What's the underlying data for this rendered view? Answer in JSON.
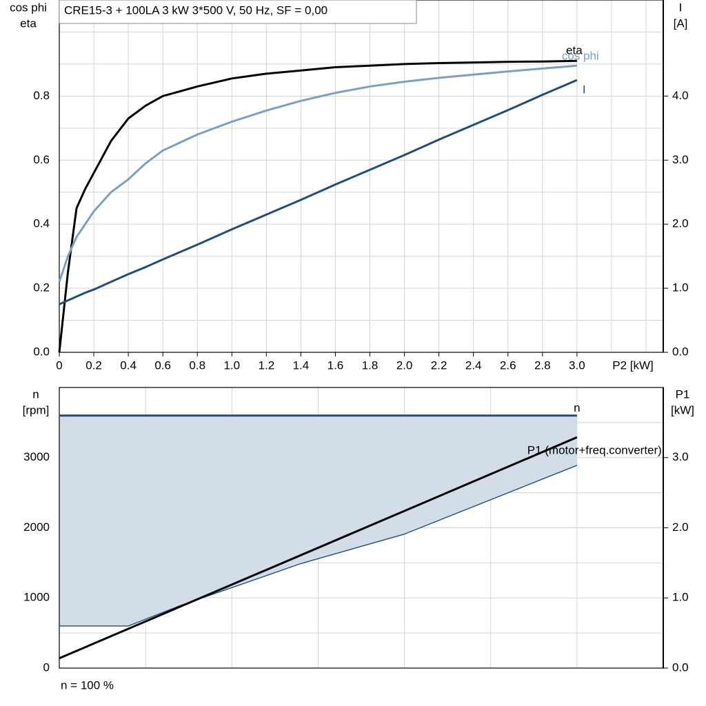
{
  "chart_data": [
    {
      "type": "line",
      "title": "CRE15-3 + 100LA   3 kW   3*500 V, 50 Hz, SF = 0,00",
      "y_label": [
        "cos phi",
        "eta"
      ],
      "y2_label": [
        "I",
        "[A]"
      ],
      "x_label": "P2 [kW]",
      "x": [
        0,
        0.05,
        0.1,
        0.15,
        0.2,
        0.3,
        0.4,
        0.5,
        0.6,
        0.8,
        1.0,
        1.2,
        1.4,
        1.6,
        1.8,
        2.0,
        2.2,
        2.4,
        2.6,
        2.8,
        3.0
      ],
      "xlim": [
        0,
        3.5
      ],
      "xticks": [
        0,
        0.2,
        0.4,
        0.6,
        0.8,
        {
          "value": 1,
          "label": "1.0"
        },
        1.2,
        1.4,
        1.6,
        1.8,
        {
          "value": 2,
          "label": "2.0"
        },
        2.2,
        2.4,
        2.6,
        2.8,
        {
          "value": 3,
          "label": "3.0"
        }
      ],
      "xgrid": [
        3.2,
        3.4
      ],
      "ylim": [
        0,
        1.1
      ],
      "yticks": [
        {
          "value": 0,
          "label": "0.0"
        },
        0.2,
        0.4,
        0.6,
        0.8
      ],
      "ygrid": [
        0.1,
        0.3,
        0.5,
        0.7,
        0.9,
        1.0
      ],
      "y2lim": [
        0,
        5.5
      ],
      "y2ticks": [
        {
          "value": 0,
          "label": "0.0"
        },
        {
          "value": 1,
          "label": "1.0"
        },
        {
          "value": 2,
          "label": "2.0"
        },
        {
          "value": 3,
          "label": "3.0"
        },
        {
          "value": 4,
          "label": "4.0"
        }
      ],
      "series": [
        {
          "name": "eta",
          "color": "#000000",
          "values": [
            0,
            0.25,
            0.45,
            0.51,
            0.56,
            0.66,
            0.73,
            0.77,
            0.8,
            0.83,
            0.855,
            0.87,
            0.88,
            0.89,
            0.895,
            0.9,
            0.903,
            0.905,
            0.907,
            0.908,
            0.91
          ]
        },
        {
          "name": "cos phi",
          "color": "#7b9fc2",
          "values": [
            0.22,
            0.3,
            0.36,
            0.4,
            0.44,
            0.5,
            0.54,
            0.59,
            0.63,
            0.68,
            0.72,
            0.755,
            0.785,
            0.81,
            0.83,
            0.845,
            0.857,
            0.867,
            0.877,
            0.886,
            0.895
          ]
        },
        {
          "name": "I",
          "color": "#1f4e7d",
          "axis": "y2",
          "values": [
            0.75,
            0.81,
            0.87,
            0.93,
            0.98,
            1.1,
            1.22,
            1.33,
            1.45,
            1.68,
            1.92,
            2.15,
            2.38,
            2.62,
            2.85,
            3.08,
            3.32,
            3.55,
            3.78,
            4.02,
            4.25
          ]
        }
      ]
    },
    {
      "type": "area",
      "y_label": [
        "n",
        "[rpm]"
      ],
      "y2_label": [
        "P1",
        "[kW]"
      ],
      "footnote": "n = 100 %",
      "xlim": [
        0,
        3.5
      ],
      "xgrid": [
        0.5,
        1,
        1.5,
        2,
        2.5,
        3
      ],
      "ylim": [
        0,
        4000
      ],
      "yticks": [
        0,
        1000,
        2000,
        3000
      ],
      "ygrid": [
        500,
        1500,
        2500,
        3500
      ],
      "y2lim": [
        0,
        4
      ],
      "y2ticks": [
        {
          "value": 0,
          "label": "0.0"
        },
        {
          "value": 1,
          "label": "1.0"
        },
        {
          "value": 2,
          "label": "2.0"
        },
        {
          "value": 3,
          "label": "3.0"
        }
      ],
      "fill_between": [
        0,
        1
      ],
      "fill_color": "#d3dde8",
      "series": [
        {
          "name": "n",
          "color": "#1f4e7d",
          "x": [
            0,
            3
          ],
          "values": [
            3600,
            3600
          ]
        },
        {
          "color": "#1f4e7d",
          "x": [
            0,
            0.4,
            0.7,
            1.4,
            2,
            3
          ],
          "values": [
            600,
            600,
            890,
            1490,
            1910,
            2890
          ]
        },
        {
          "name": "P1 (motor+freq.converter)",
          "color": "#000000",
          "axis": "y2",
          "x": [
            0,
            3
          ],
          "values": [
            0.14,
            3.29
          ]
        }
      ]
    }
  ]
}
